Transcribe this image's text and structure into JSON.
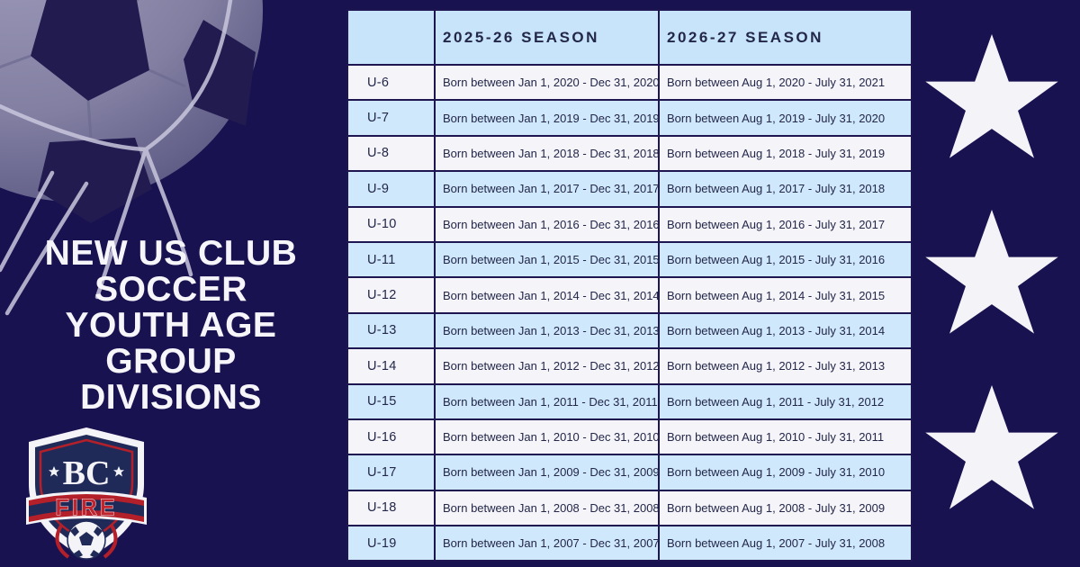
{
  "title": {
    "lines": [
      "NEW US CLUB",
      "SOCCER",
      "YOUTH AGE",
      "GROUP",
      "DIVISIONS"
    ]
  },
  "logo": {
    "monogram": "BC",
    "word": "FIRE"
  },
  "chart_data": {
    "type": "table",
    "title": "NEW US CLUB SOCCER YOUTH AGE GROUP DIVISIONS",
    "columns": [
      "",
      "2025-26 SEASON",
      "2026-27 SEASON"
    ],
    "rows": [
      [
        "U-6",
        "Born between Jan 1, 2020 - Dec 31, 2020",
        "Born between Aug 1, 2020 - July 31, 2021"
      ],
      [
        "U-7",
        "Born between Jan 1, 2019 - Dec 31, 2019",
        "Born between Aug 1, 2019 - July 31, 2020"
      ],
      [
        "U-8",
        "Born between Jan 1, 2018 - Dec 31, 2018",
        "Born between Aug 1, 2018 - July 31, 2019"
      ],
      [
        "U-9",
        "Born between Jan 1, 2017 - Dec 31, 2017",
        "Born between Aug 1, 2017 - July 31, 2018"
      ],
      [
        "U-10",
        "Born between Jan 1, 2016 - Dec 31, 2016",
        "Born between Aug 1, 2016 - July 31, 2017"
      ],
      [
        "U-11",
        "Born between Jan 1, 2015 - Dec 31, 2015",
        "Born between Aug 1, 2015 - July 31, 2016"
      ],
      [
        "U-12",
        "Born between Jan 1, 2014 - Dec 31, 2014",
        "Born between Aug 1, 2014 - July 31, 2015"
      ],
      [
        "U-13",
        "Born between Jan 1, 2013 - Dec 31, 2013",
        "Born between Aug 1, 2013 - July 31, 2014"
      ],
      [
        "U-14",
        "Born between Jan 1, 2012 - Dec 31, 2012",
        "Born between Aug 1, 2012 - July 31, 2013"
      ],
      [
        "U-15",
        "Born between Jan 1, 2011 - Dec 31, 2011",
        "Born between Aug 1, 2011 - July 31, 2012"
      ],
      [
        "U-16",
        "Born between Jan 1, 2010 - Dec 31, 2010",
        "Born between Aug 1, 2010 - July 31, 2011"
      ],
      [
        "U-17",
        "Born between Jan 1, 2009 - Dec 31, 2009",
        "Born between Aug 1, 2009 - July 31, 2010"
      ],
      [
        "U-18",
        "Born between Jan 1, 2008 - Dec 31, 2008",
        "Born between Aug 1, 2008 - July 31, 2009"
      ],
      [
        "U-19",
        "Born between Jan 1, 2007 - Dec 31, 2007",
        "Born between Aug 1, 2007 - July 31, 2008"
      ]
    ]
  },
  "decor": {
    "stars_count": 3
  },
  "colors": {
    "bg_navy": "#191250",
    "table_border": "#1d1651",
    "header_bg": "#c7e4fa",
    "row_light": "#f5f4f9",
    "row_blue": "#cfe8fc",
    "table_text": "#232749",
    "title_white": "#f6f5fa",
    "star_white": "#f4f3f8",
    "logo_red": "#b3202a",
    "logo_navy": "#202a58",
    "ball_dark": "#211b50",
    "ball_light": "#8e8bad",
    "rope": "#c9c7dd"
  }
}
